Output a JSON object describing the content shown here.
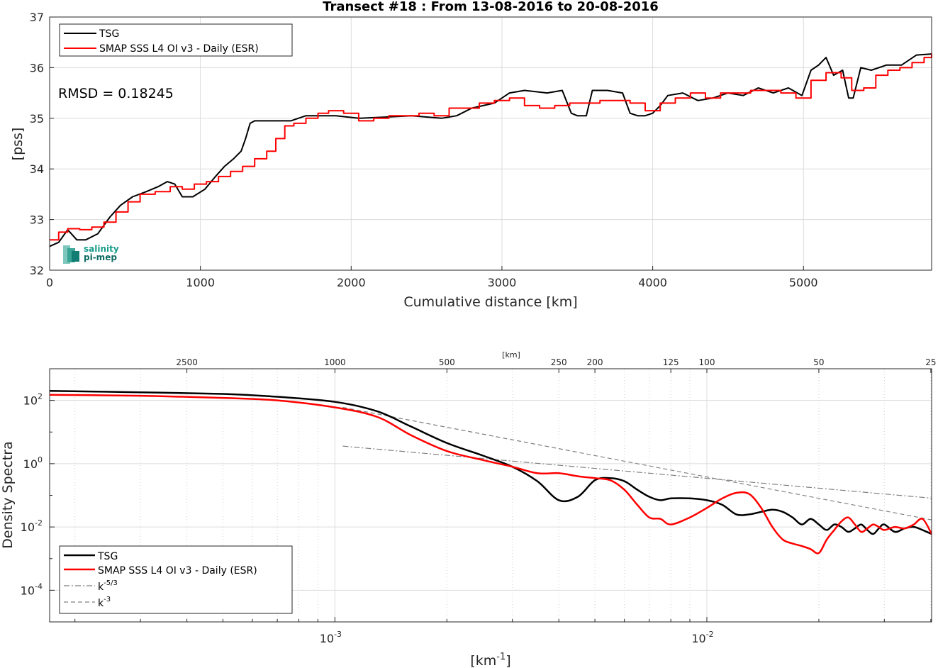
{
  "chart_data": [
    {
      "type": "line",
      "title": "Transect #18 : From 13-08-2016 to 20-08-2016",
      "xlabel": "Cumulative distance [km]",
      "ylabel": "[pss]",
      "xlim": [
        0,
        5850
      ],
      "ylim": [
        32,
        37
      ],
      "xticks": [
        "0",
        "1000",
        "2000",
        "3000",
        "4000",
        "5000"
      ],
      "yticks": [
        "32",
        "33",
        "34",
        "35",
        "36",
        "37"
      ],
      "grid": true,
      "legend_location": "top-left",
      "annotation": "RMSD = 0.18245",
      "logo": {
        "line1": "salinity",
        "line2": "pi-mep"
      },
      "series": [
        {
          "name": "TSG",
          "color": "#000000",
          "x": [
            0,
            60,
            120,
            180,
            240,
            320,
            400,
            470,
            550,
            640,
            720,
            780,
            830,
            880,
            950,
            1030,
            1100,
            1160,
            1220,
            1270,
            1300,
            1330,
            1360,
            1450,
            1600,
            1700,
            1800,
            1900,
            2050,
            2200,
            2400,
            2600,
            2700,
            2800,
            2950,
            3050,
            3150,
            3300,
            3400,
            3460,
            3500,
            3560,
            3600,
            3700,
            3800,
            3850,
            3900,
            3950,
            4000,
            4050,
            4100,
            4200,
            4300,
            4400,
            4500,
            4600,
            4700,
            4800,
            4900,
            4990,
            5050,
            5100,
            5150,
            5200,
            5260,
            5300,
            5330,
            5380,
            5450,
            5550,
            5650,
            5750,
            5850
          ],
          "y": [
            32.47,
            32.55,
            32.8,
            32.6,
            32.6,
            32.72,
            33.05,
            33.28,
            33.45,
            33.55,
            33.65,
            33.75,
            33.7,
            33.45,
            33.45,
            33.6,
            33.85,
            34.05,
            34.2,
            34.35,
            34.6,
            34.9,
            34.95,
            34.95,
            34.95,
            35.05,
            35.05,
            35.05,
            35.0,
            35.02,
            35.05,
            35.0,
            35.05,
            35.2,
            35.3,
            35.5,
            35.55,
            35.5,
            35.55,
            35.1,
            35.05,
            35.05,
            35.55,
            35.55,
            35.5,
            35.1,
            35.05,
            35.05,
            35.1,
            35.25,
            35.45,
            35.5,
            35.35,
            35.4,
            35.5,
            35.45,
            35.6,
            35.5,
            35.6,
            35.45,
            35.95,
            36.05,
            36.2,
            35.85,
            35.95,
            35.4,
            35.4,
            36.0,
            35.95,
            36.05,
            36.05,
            36.25,
            36.27
          ]
        },
        {
          "name": "SMAP SSS L4 OI v3 - Daily (ESR)",
          "color": "#ff0000",
          "x": [
            0,
            60,
            120,
            200,
            280,
            360,
            440,
            520,
            600,
            700,
            800,
            880,
            960,
            1040,
            1120,
            1200,
            1280,
            1360,
            1440,
            1500,
            1560,
            1620,
            1700,
            1780,
            1850,
            1950,
            2050,
            2150,
            2250,
            2350,
            2450,
            2550,
            2650,
            2750,
            2850,
            2950,
            3050,
            3150,
            3250,
            3350,
            3450,
            3550,
            3650,
            3750,
            3850,
            3950,
            4050,
            4150,
            4250,
            4350,
            4450,
            4550,
            4650,
            4750,
            4850,
            4950,
            5050,
            5150,
            5250,
            5320,
            5400,
            5480,
            5560,
            5640,
            5720,
            5800,
            5850
          ],
          "y": [
            32.6,
            32.75,
            32.82,
            32.8,
            32.85,
            32.95,
            33.15,
            33.35,
            33.5,
            33.55,
            33.65,
            33.6,
            33.7,
            33.75,
            33.85,
            33.95,
            34.05,
            34.2,
            34.35,
            34.6,
            34.85,
            34.9,
            35.0,
            35.1,
            35.15,
            35.1,
            34.95,
            35.0,
            35.05,
            35.05,
            35.1,
            35.05,
            35.2,
            35.2,
            35.3,
            35.35,
            35.4,
            35.25,
            35.2,
            35.25,
            35.3,
            35.3,
            35.35,
            35.35,
            35.3,
            35.15,
            35.3,
            35.4,
            35.5,
            35.4,
            35.5,
            35.5,
            35.55,
            35.55,
            35.5,
            35.4,
            35.75,
            35.9,
            35.8,
            35.55,
            35.6,
            35.85,
            35.95,
            36.0,
            36.1,
            36.2,
            36.28
          ]
        }
      ]
    },
    {
      "type": "line",
      "title": "",
      "xlabel": "[km",
      "xlabel_sup": "-1",
      "xlabel_tail": "]",
      "ylabel": "Density Spectra",
      "xscale": "log",
      "yscale": "log",
      "xlim": [
        0.000171,
        0.0402
      ],
      "ylim": [
        1e-05,
        1000
      ],
      "xtick_labels": [
        {
          "value": 0.001,
          "base": "10",
          "exp": "-3"
        },
        {
          "value": 0.01,
          "base": "10",
          "exp": "-2"
        }
      ],
      "ytick_labels": [
        {
          "value": 0.0001,
          "base": "10",
          "exp": "-4"
        },
        {
          "value": 0.01,
          "base": "10",
          "exp": "-2"
        },
        {
          "value": 1,
          "base": "10",
          "exp": "0"
        },
        {
          "value": 100,
          "base": "10",
          "exp": "2"
        }
      ],
      "top_axis_label": "[km]",
      "top_ticks": [
        {
          "label": "2500",
          "value": 0.0004
        },
        {
          "label": "1000",
          "value": 0.001
        },
        {
          "label": "500",
          "value": 0.002
        },
        {
          "label": "250",
          "value": 0.004
        },
        {
          "label": "200",
          "value": 0.005
        },
        {
          "label": "125",
          "value": 0.008
        },
        {
          "label": "100",
          "value": 0.01
        },
        {
          "label": "50",
          "value": 0.02
        },
        {
          "label": "25",
          "value": 0.04
        }
      ],
      "grid": true,
      "legend_location": "bottom-left",
      "series": [
        {
          "name": "TSG",
          "color": "#000000",
          "x": [
            0.000171,
            0.0003,
            0.0005,
            0.0007,
            0.001,
            0.0013,
            0.0016,
            0.002,
            0.0025,
            0.003,
            0.0035,
            0.004,
            0.0045,
            0.005,
            0.0055,
            0.006,
            0.0065,
            0.007,
            0.0075,
            0.008,
            0.009,
            0.01,
            0.011,
            0.012,
            0.013,
            0.014,
            0.015,
            0.016,
            0.017,
            0.018,
            0.019,
            0.02,
            0.021,
            0.022,
            0.023,
            0.024,
            0.025,
            0.026,
            0.027,
            0.028,
            0.029,
            0.03,
            0.032,
            0.034,
            0.036,
            0.038,
            0.0402
          ],
          "y": [
            200,
            180,
            160,
            130,
            90,
            45,
            15,
            4.5,
            1.8,
            0.8,
            0.28,
            0.07,
            0.09,
            0.3,
            0.35,
            0.28,
            0.15,
            0.09,
            0.07,
            0.08,
            0.08,
            0.07,
            0.05,
            0.025,
            0.025,
            0.03,
            0.035,
            0.03,
            0.02,
            0.012,
            0.018,
            0.012,
            0.008,
            0.012,
            0.01,
            0.007,
            0.009,
            0.012,
            0.008,
            0.006,
            0.009,
            0.012,
            0.007,
            0.009,
            0.01,
            0.008,
            0.006
          ]
        },
        {
          "name": "SMAP SSS L4 OI v3 - Daily (ESR)",
          "color": "#ff0000",
          "x": [
            0.000171,
            0.0003,
            0.0005,
            0.0007,
            0.001,
            0.0013,
            0.0016,
            0.002,
            0.0025,
            0.003,
            0.0035,
            0.004,
            0.0045,
            0.005,
            0.0055,
            0.006,
            0.0065,
            0.007,
            0.0075,
            0.008,
            0.009,
            0.01,
            0.011,
            0.012,
            0.013,
            0.014,
            0.015,
            0.016,
            0.017,
            0.018,
            0.019,
            0.02,
            0.021,
            0.022,
            0.023,
            0.024,
            0.025,
            0.026,
            0.027,
            0.028,
            0.029,
            0.03,
            0.032,
            0.034,
            0.036,
            0.038,
            0.0402
          ],
          "y": [
            150,
            140,
            120,
            100,
            60,
            30,
            8,
            2.5,
            1.3,
            0.8,
            0.5,
            0.5,
            0.4,
            0.35,
            0.3,
            0.15,
            0.05,
            0.02,
            0.018,
            0.012,
            0.02,
            0.04,
            0.08,
            0.12,
            0.11,
            0.04,
            0.01,
            0.004,
            0.003,
            0.0025,
            0.002,
            0.0015,
            0.004,
            0.008,
            0.015,
            0.02,
            0.012,
            0.007,
            0.009,
            0.012,
            0.01,
            0.008,
            0.01,
            0.009,
            0.012,
            0.018,
            0.006
          ]
        },
        {
          "name": "k^-5/3",
          "label_base": "k",
          "label_exp": "-5/3",
          "color": "#808080",
          "dash": "dashdot",
          "x": [
            0.00105,
            0.0402
          ],
          "y": [
            3.6,
            0.0812
          ]
        },
        {
          "name": "k^-3",
          "label_base": "k",
          "label_exp": "-3",
          "color": "#808080",
          "dash": "dashed",
          "x": [
            0.00105,
            0.0402
          ],
          "y": [
            60,
            0.0168
          ]
        }
      ]
    }
  ]
}
